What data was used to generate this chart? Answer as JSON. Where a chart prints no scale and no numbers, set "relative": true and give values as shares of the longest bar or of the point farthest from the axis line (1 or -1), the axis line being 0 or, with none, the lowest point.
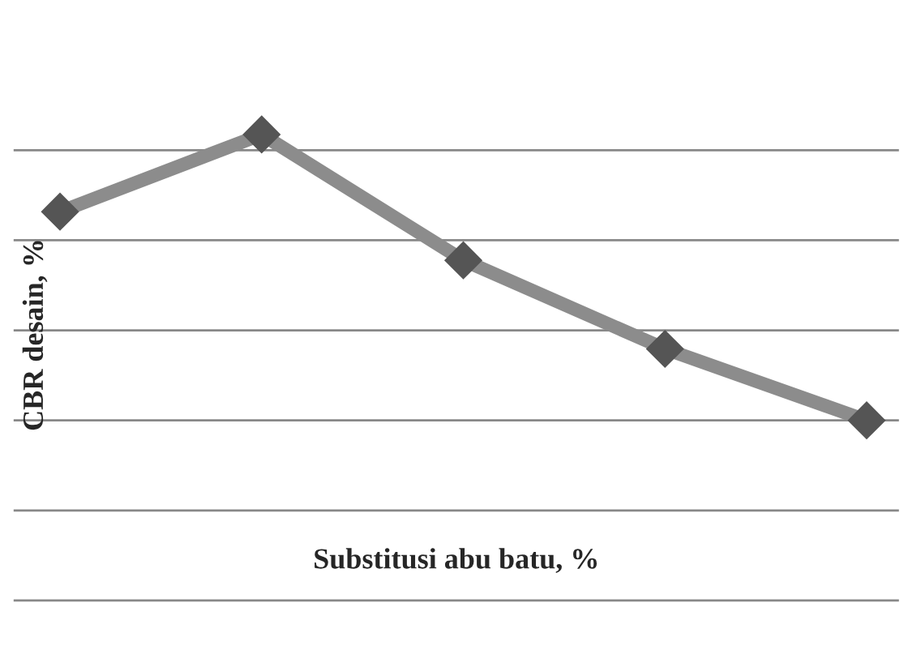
{
  "chart_data": {
    "type": "line",
    "relative": true,
    "xlabel": "Substitusi abu batu, %",
    "ylabel": "CBR desain, %",
    "categories": [
      null,
      null,
      null,
      null,
      null
    ],
    "series": [
      {
        "color": "#8c8c8c",
        "values": [
          0.73,
          1,
          0.56,
          0.25,
          0
        ]
      }
    ],
    "grid": "y",
    "marker": "diamond",
    "line_style": "solid"
  }
}
